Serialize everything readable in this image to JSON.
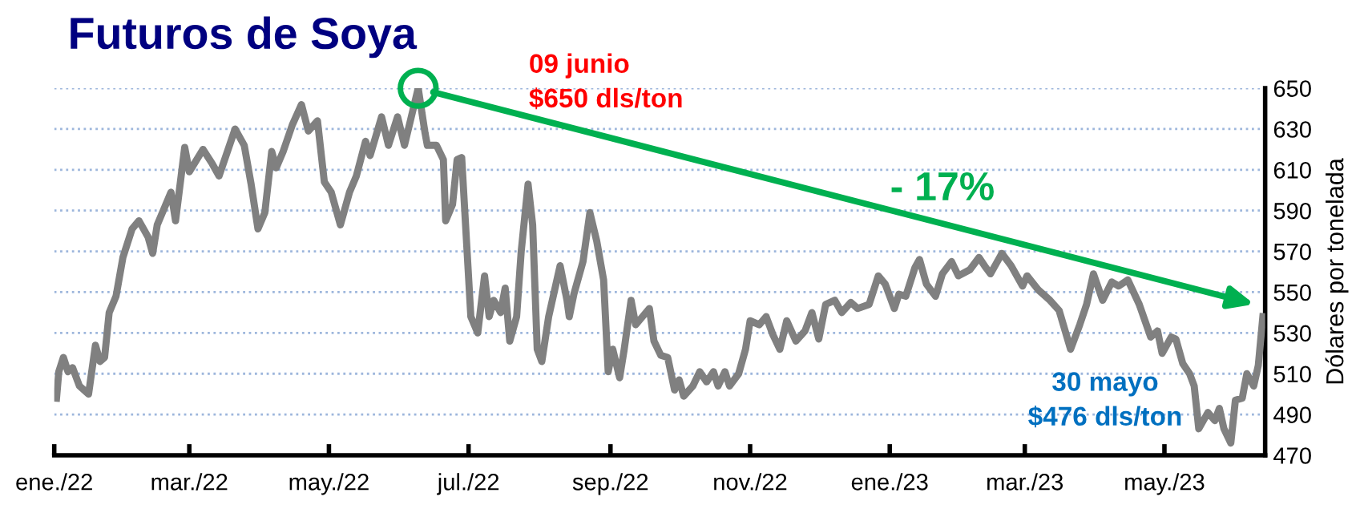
{
  "chart_data": {
    "type": "line",
    "title": "Futuros de Soya",
    "ylabel": "Dólares por tonelada",
    "x": [
      "2022-01-02",
      "2022-01-03",
      "2022-01-05",
      "2022-01-07",
      "2022-01-09",
      "2022-01-12",
      "2022-01-16",
      "2022-01-19",
      "2022-01-21",
      "2022-01-23",
      "2022-01-25",
      "2022-01-28",
      "2022-01-31",
      "2022-02-04",
      "2022-02-07",
      "2022-02-11",
      "2022-02-13",
      "2022-02-15",
      "2022-02-21",
      "2022-02-23",
      "2022-02-27",
      "2022-03-01",
      "2022-03-07",
      "2022-03-11",
      "2022-03-14",
      "2022-03-21",
      "2022-03-25",
      "2022-03-28",
      "2022-03-31",
      "2022-04-03",
      "2022-04-06",
      "2022-04-08",
      "2022-04-11",
      "2022-04-15",
      "2022-04-19",
      "2022-04-22",
      "2022-04-26",
      "2022-04-29",
      "2022-05-02",
      "2022-05-06",
      "2022-05-10",
      "2022-05-13",
      "2022-05-17",
      "2022-05-19",
      "2022-05-24",
      "2022-05-27",
      "2022-05-31",
      "2022-06-03",
      "2022-06-09",
      "2022-06-12",
      "2022-06-13",
      "2022-06-17",
      "2022-06-20",
      "2022-06-21",
      "2022-06-24",
      "2022-06-26",
      "2022-06-28",
      "2022-07-02",
      "2022-07-05",
      "2022-07-08",
      "2022-07-10",
      "2022-07-12",
      "2022-07-15",
      "2022-07-17",
      "2022-07-19",
      "2022-07-22",
      "2022-07-24",
      "2022-07-27",
      "2022-07-29",
      "2022-07-31",
      "2022-08-02",
      "2022-08-05",
      "2022-08-08",
      "2022-08-10",
      "2022-08-13",
      "2022-08-14",
      "2022-08-16",
      "2022-08-20",
      "2022-08-23",
      "2022-08-26",
      "2022-08-29",
      "2022-08-31",
      "2022-09-02",
      "2022-09-05",
      "2022-09-07",
      "2022-09-10",
      "2022-09-12",
      "2022-09-15",
      "2022-09-18",
      "2022-09-20",
      "2022-09-23",
      "2022-09-26",
      "2022-09-29",
      "2022-10-01",
      "2022-10-03",
      "2022-10-07",
      "2022-10-10",
      "2022-10-13",
      "2022-10-16",
      "2022-10-18",
      "2022-10-21",
      "2022-10-23",
      "2022-10-27",
      "2022-10-30",
      "2022-11-01",
      "2022-11-05",
      "2022-11-08",
      "2022-11-11",
      "2022-11-14",
      "2022-11-17",
      "2022-11-21",
      "2022-11-25",
      "2022-11-28",
      "2022-12-01",
      "2022-12-04",
      "2022-12-08",
      "2022-12-11",
      "2022-12-15",
      "2022-12-18",
      "2022-12-23",
      "2022-12-27",
      "2022-12-30",
      "2023-01-03",
      "2023-01-05",
      "2023-01-08",
      "2023-01-12",
      "2023-01-14",
      "2023-01-17",
      "2023-01-21",
      "2023-01-24",
      "2023-01-28",
      "2023-01-31",
      "2023-02-05",
      "2023-02-09",
      "2023-02-12",
      "2023-02-14",
      "2023-02-19",
      "2023-02-23",
      "2023-02-28",
      "2023-03-02",
      "2023-03-07",
      "2023-03-12",
      "2023-03-16",
      "2023-03-21",
      "2023-03-25",
      "2023-03-28",
      "2023-03-31",
      "2023-04-04",
      "2023-04-08",
      "2023-04-11",
      "2023-04-15",
      "2023-04-20",
      "2023-04-25",
      "2023-04-28",
      "2023-04-30",
      "2023-05-04",
      "2023-05-06",
      "2023-05-09",
      "2023-05-12",
      "2023-05-14",
      "2023-05-16",
      "2023-05-20",
      "2023-05-23",
      "2023-05-25",
      "2023-05-27",
      "2023-05-30",
      "2023-06-01",
      "2023-06-04",
      "2023-06-06",
      "2023-06-09",
      "2023-06-11",
      "2023-06-13"
    ],
    "series": [
      {
        "color": "#808080",
        "values": [
          498,
          511,
          518,
          511,
          513,
          504,
          500,
          524,
          516,
          518,
          540,
          548,
          567,
          581,
          585,
          577,
          569,
          583,
          599,
          585,
          621,
          609,
          620,
          613,
          607,
          630,
          622,
          603,
          581,
          589,
          619,
          611,
          619,
          632,
          642,
          629,
          634,
          604,
          599,
          583,
          599,
          607,
          624,
          617,
          636,
          622,
          636,
          622,
          650,
          628,
          622,
          622,
          615,
          585,
          593,
          615,
          616,
          538,
          530,
          558,
          538,
          546,
          540,
          552,
          526,
          538,
          570,
          603,
          583,
          522,
          516,
          538,
          553,
          563,
          546,
          538,
          549,
          565,
          589,
          575,
          556,
          511,
          522,
          508,
          522,
          546,
          534,
          538,
          542,
          526,
          519,
          518,
          502,
          507,
          499,
          504,
          511,
          506,
          511,
          504,
          511,
          504,
          510,
          522,
          536,
          534,
          538,
          529,
          522,
          536,
          526,
          531,
          540,
          527,
          544,
          546,
          540,
          545,
          542,
          544,
          558,
          554,
          542,
          549,
          548,
          562,
          566,
          554,
          548,
          559,
          565,
          558,
          561,
          567,
          562,
          559,
          569,
          563,
          553,
          558,
          551,
          546,
          541,
          522,
          534,
          544,
          559,
          546,
          555,
          553,
          556,
          544,
          528,
          531,
          520,
          528,
          527,
          515,
          510,
          504,
          483,
          491,
          487,
          493,
          483,
          476,
          497,
          498,
          510,
          504,
          514,
          538
        ]
      }
    ],
    "xlim": [
      "2022-01-01",
      "2023-06-14"
    ],
    "xticks": [
      {
        "value": "2022-01-01",
        "label": "ene./22"
      },
      {
        "value": "2022-03-01",
        "label": "mar./22"
      },
      {
        "value": "2022-05-01",
        "label": "may./22"
      },
      {
        "value": "2022-07-01",
        "label": "jul./22"
      },
      {
        "value": "2022-09-01",
        "label": "sep./22"
      },
      {
        "value": "2022-11-01",
        "label": "nov./22"
      },
      {
        "value": "2023-01-01",
        "label": "ene./23"
      },
      {
        "value": "2023-03-01",
        "label": "mar./23"
      },
      {
        "value": "2023-05-01",
        "label": "may./23"
      }
    ],
    "ylim": [
      470,
      650
    ],
    "yticks": [
      470,
      490,
      510,
      530,
      550,
      570,
      590,
      610,
      630,
      650
    ],
    "grid": "y",
    "marker": "none",
    "line_style": "solid",
    "annotations": [
      "09 junio\n$650 dls/ton",
      "- 17%",
      "30 mayo\n$476 dls/ton"
    ]
  }
}
